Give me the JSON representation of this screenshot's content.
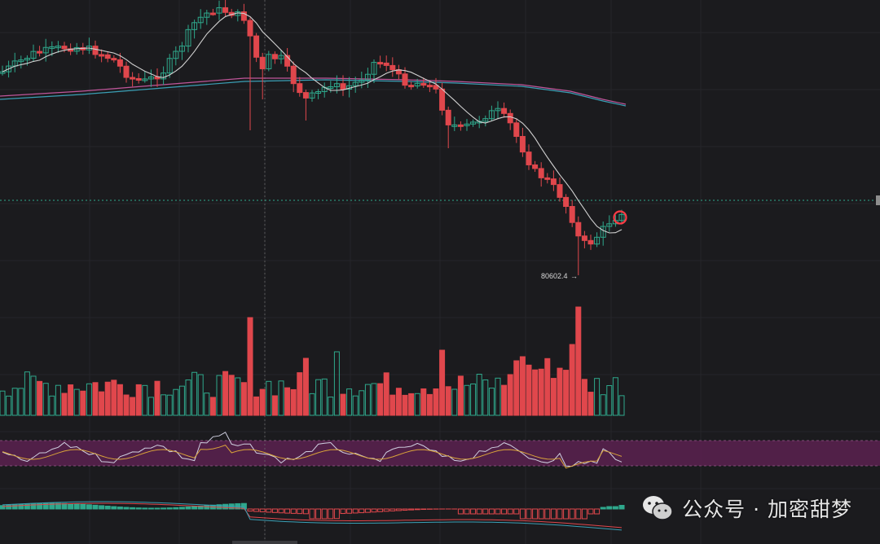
{
  "chart_data": {
    "type": "candlestick",
    "series": [],
    "colors": {
      "background": "#1b1b1e",
      "grid": "#2a2a2e",
      "up": "#2fa88c",
      "down": "#e0474c",
      "ma_fast": "#d0d0d0",
      "ma_slow_a": "#c0569a",
      "ma_slow_b": "#3a9fb5",
      "current_price_line": "#2fa88c",
      "rsi_band": "#5a2150"
    },
    "annotations": {
      "low_price": "80602.4",
      "low_marker": "→",
      "circle_marker": true
    },
    "grid": true,
    "crosshair": true,
    "panels": [
      "price",
      "volume",
      "oscillator",
      "macd"
    ]
  },
  "watermark": {
    "text": "公众号 · 加密甜梦",
    "icon": "wechat-icon"
  }
}
